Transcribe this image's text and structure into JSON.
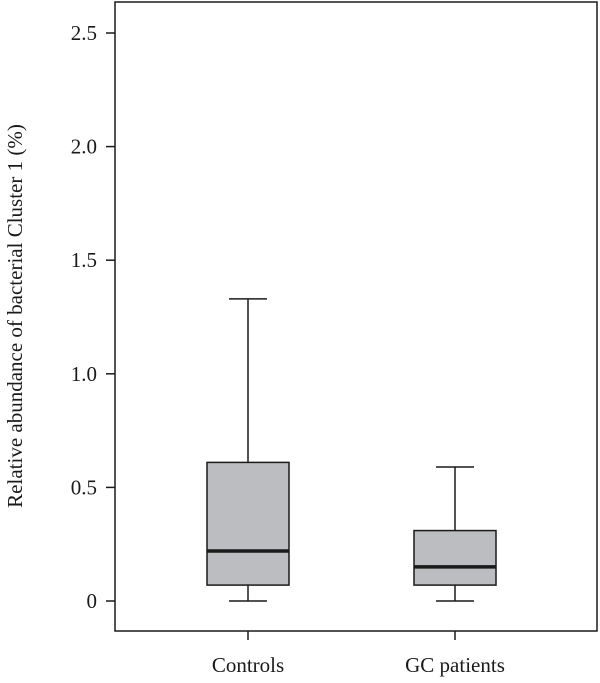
{
  "chart_data": {
    "type": "boxplot",
    "title": "",
    "xlabel": "",
    "ylabel": "Relative abundance of bacterial Cluster 1 (%)",
    "ylim": [
      -0.13,
      2.6
    ],
    "yticks": [
      0,
      0.5,
      1.0,
      1.5,
      2.0,
      2.5
    ],
    "ytick_labels": [
      "0",
      "0.5",
      "1.0",
      "1.5",
      "2.0",
      "2.5"
    ],
    "grid": false,
    "legend": "none",
    "box_color": "#bcbdc0",
    "line_color": "#1a1a1a",
    "categories": [
      "Controls",
      "GC patients"
    ],
    "boxes": [
      {
        "category": "Controls",
        "min": 0.0,
        "q1": 0.07,
        "median": 0.22,
        "q3": 0.61,
        "max": 1.33
      },
      {
        "category": "GC patients",
        "min": 0.0,
        "q1": 0.07,
        "median": 0.15,
        "q3": 0.31,
        "max": 0.59
      }
    ]
  }
}
